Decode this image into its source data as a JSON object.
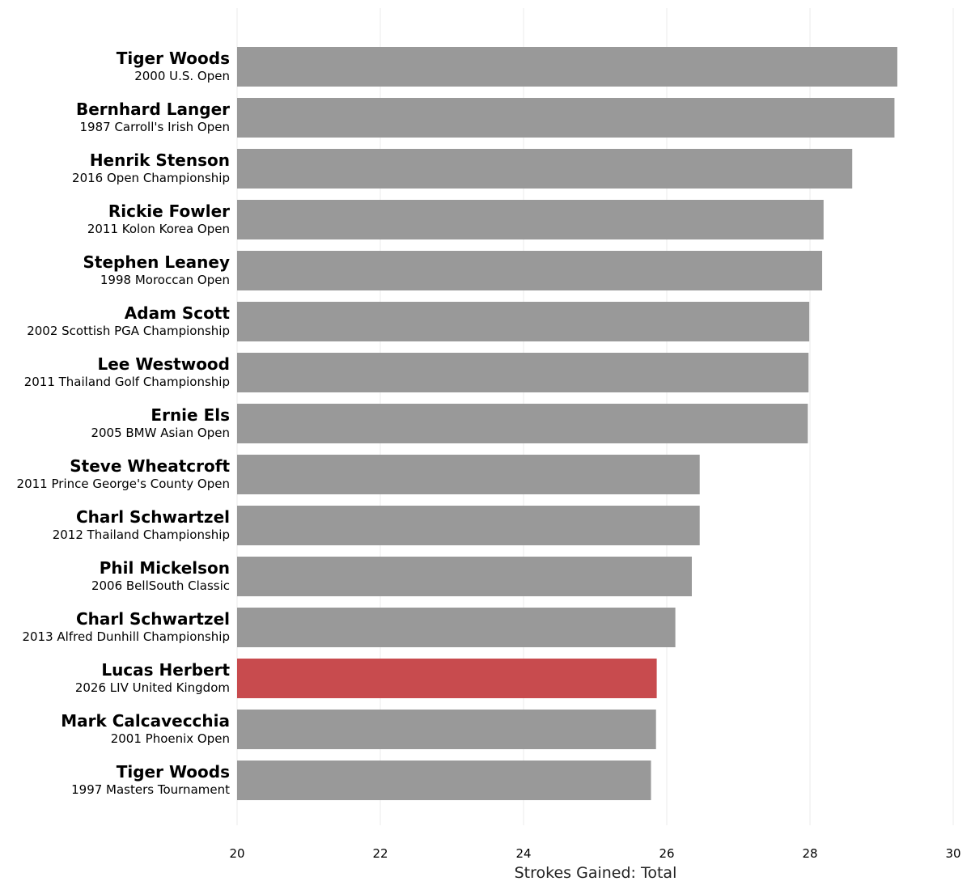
{
  "chart_data": {
    "type": "bar",
    "orientation": "horizontal",
    "xlabel": "Strokes Gained: Total",
    "xlim": [
      20,
      30
    ],
    "x_ticks": [
      "20",
      "22",
      "24",
      "26",
      "28",
      "30"
    ],
    "grid": true,
    "colors": {
      "default_bar": "#999999",
      "highlight_bar": "#c84b4e"
    },
    "highlight_player": "Lucas Herbert",
    "bars": [
      {
        "player": "Tiger Woods",
        "event": "2000 U.S. Open",
        "value": 29.22
      },
      {
        "player": "Bernhard Langer",
        "event": "1987 Carroll's Irish Open",
        "value": 29.18
      },
      {
        "player": "Henrik Stenson",
        "event": "2016 Open Championship",
        "value": 28.59
      },
      {
        "player": "Rickie Fowler",
        "event": "2011 Kolon Korea Open",
        "value": 28.19
      },
      {
        "player": "Stephen Leaney",
        "event": "1998 Moroccan Open",
        "value": 28.17
      },
      {
        "player": "Adam Scott",
        "event": "2002 Scottish PGA Championship",
        "value": 27.99
      },
      {
        "player": "Lee Westwood",
        "event": "2011 Thailand Golf Championship",
        "value": 27.98
      },
      {
        "player": "Ernie Els",
        "event": "2005 BMW Asian Open",
        "value": 27.97
      },
      {
        "player": "Steve Wheatcroft",
        "event": "2011 Prince George's County Open",
        "value": 26.46
      },
      {
        "player": "Charl Schwartzel",
        "event": "2012 Thailand Championship",
        "value": 26.46
      },
      {
        "player": "Phil Mickelson",
        "event": "2006 BellSouth Classic",
        "value": 26.35
      },
      {
        "player": "Charl Schwartzel",
        "event": "2013 Alfred Dunhill Championship",
        "value": 26.12
      },
      {
        "player": "Lucas Herbert",
        "event": "2026 LIV United Kingdom",
        "value": 25.86,
        "highlight": true
      },
      {
        "player": "Mark Calcavecchia",
        "event": "2001 Phoenix Open",
        "value": 25.85
      },
      {
        "player": "Tiger Woods",
        "event": "1997 Masters Tournament",
        "value": 25.78
      }
    ]
  }
}
